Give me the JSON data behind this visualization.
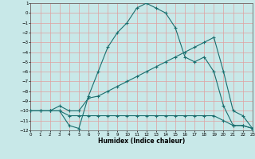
{
  "xlabel": "Humidex (Indice chaleur)",
  "xlim": [
    0,
    23
  ],
  "ylim": [
    -12,
    1
  ],
  "xticks": [
    0,
    1,
    2,
    3,
    4,
    5,
    6,
    7,
    8,
    9,
    10,
    11,
    12,
    13,
    14,
    15,
    16,
    17,
    18,
    19,
    20,
    21,
    22,
    23
  ],
  "yticks": [
    1,
    0,
    -1,
    -2,
    -3,
    -4,
    -5,
    -6,
    -7,
    -8,
    -9,
    -10,
    -11,
    -12
  ],
  "bg_color": "#c8e8e8",
  "grid_color": "#e0a0a0",
  "line_color": "#1a6e6e",
  "curve1_x": [
    0,
    1,
    2,
    3,
    4,
    5,
    6,
    7,
    8,
    9,
    10,
    11,
    12,
    13,
    14,
    15,
    16,
    17,
    18,
    19,
    20,
    21,
    22,
    23
  ],
  "curve1_y": [
    -10,
    -10,
    -10,
    -10,
    -11.5,
    -11.8,
    -8.5,
    -6,
    -3.5,
    -2,
    -1,
    0.5,
    1,
    0.5,
    0,
    -1.5,
    -4.5,
    -5,
    -4.5,
    -6,
    -9.5,
    -11.5,
    -11.5,
    -11.8
  ],
  "curve2_x": [
    0,
    1,
    2,
    3,
    4,
    5,
    6,
    7,
    8,
    9,
    10,
    11,
    12,
    13,
    14,
    15,
    16,
    17,
    18,
    19,
    20,
    21,
    22,
    23
  ],
  "curve2_y": [
    -10,
    -10,
    -10,
    -9.5,
    -10,
    -10,
    -8.7,
    -8.5,
    -8,
    -7.5,
    -7,
    -6.5,
    -6,
    -5.5,
    -5,
    -4.5,
    -4,
    -3.5,
    -3,
    -2.5,
    -6,
    -10,
    -10.5,
    -11.8
  ],
  "curve3_x": [
    0,
    1,
    2,
    3,
    4,
    5,
    6,
    7,
    8,
    9,
    10,
    11,
    12,
    13,
    14,
    15,
    16,
    17,
    18,
    19,
    20,
    21,
    22,
    23
  ],
  "curve3_y": [
    -10,
    -10,
    -10,
    -10,
    -10.5,
    -10.5,
    -10.5,
    -10.5,
    -10.5,
    -10.5,
    -10.5,
    -10.5,
    -10.5,
    -10.5,
    -10.5,
    -10.5,
    -10.5,
    -10.5,
    -10.5,
    -10.5,
    -11,
    -11.5,
    -11.5,
    -11.8
  ]
}
